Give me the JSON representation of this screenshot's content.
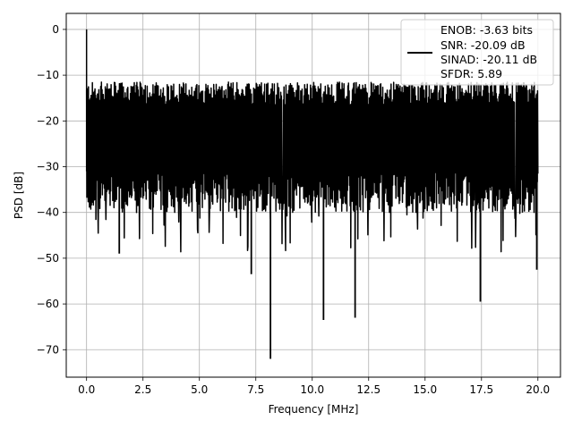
{
  "chart_data": {
    "type": "line",
    "title": "",
    "xlabel": "Frequency [MHz]",
    "ylabel": "PSD [dB]",
    "xlim": [
      -0.9,
      21.0
    ],
    "ylim": [
      -76.0,
      3.5
    ],
    "xticks": [
      0.0,
      2.5,
      5.0,
      7.5,
      10.0,
      12.5,
      15.0,
      17.5,
      20.0
    ],
    "xtick_labels": [
      "0.0",
      "2.5",
      "5.0",
      "7.5",
      "10.0",
      "12.5",
      "15.0",
      "17.5",
      "20.0"
    ],
    "yticks": [
      0,
      -10,
      -20,
      -30,
      -40,
      -50,
      -60,
      -70
    ],
    "ytick_labels": [
      "0",
      "−10",
      "−20",
      "−30",
      "−40",
      "−50",
      "−60",
      "−70"
    ],
    "grid": true,
    "legend_position": "top-right",
    "line_color": "#000000",
    "series": [
      {
        "name": "ENOB: -3.63 bits\nSNR: -20.09 dB\nSINAD: -20.11 dB\nSFDR: 5.89",
        "x_range": [
          0.0,
          20.0
        ],
        "dense_band_top": -14,
        "dense_band_bottom": -31,
        "peak": {
          "x": 0.0,
          "y": 0.0
        },
        "notable_dips": [
          {
            "x": 1.45,
            "y": -49
          },
          {
            "x": 7.3,
            "y": -53.5
          },
          {
            "x": 8.15,
            "y": -72
          },
          {
            "x": 10.5,
            "y": -63.5
          },
          {
            "x": 11.9,
            "y": -63
          },
          {
            "x": 17.45,
            "y": -59.5
          },
          {
            "x": 19.95,
            "y": -52.5
          }
        ]
      }
    ],
    "legend_lines": [
      "ENOB: -3.63 bits",
      "SNR: -20.09 dB",
      "SINAD: -20.11 dB",
      "SFDR: 5.89"
    ]
  }
}
